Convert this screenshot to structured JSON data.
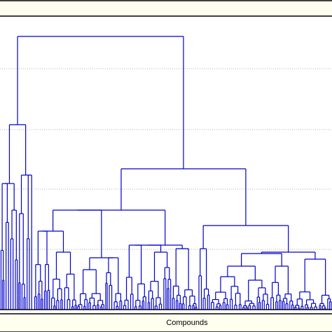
{
  "chart_data": {
    "type": "dendrogram",
    "title": "",
    "xlabel": "Compounds",
    "ylabel": "",
    "grid": true,
    "line_color": "#0000cc",
    "frame_band_color": "#fffff0",
    "n_gridlines": 4,
    "merges": [
      {
        "height": 0.92,
        "children": [
          "left_group",
          "right_group"
        ]
      },
      {
        "height": 0.6,
        "children": [
          "far_left_cluster",
          "mid_left_cluster"
        ]
      },
      {
        "height": 0.46,
        "children": [
          "center_group",
          "right_group_core"
        ]
      },
      {
        "height": 0.32,
        "children": [
          "center_left_sub",
          "center_right_sub"
        ]
      },
      {
        "height": 0.27,
        "children": [
          "right_sub_a",
          "right_sub_b"
        ]
      },
      {
        "height": 0.17,
        "children": [
          "right_sub_b1",
          "right_sub_b2"
        ]
      },
      {
        "height": 0.24,
        "children": [
          "far_left_sub_a",
          "far_left_sub_b"
        ]
      },
      {
        "height": 0.19,
        "children": [
          "center_c1",
          "center_c2"
        ]
      }
    ]
  }
}
